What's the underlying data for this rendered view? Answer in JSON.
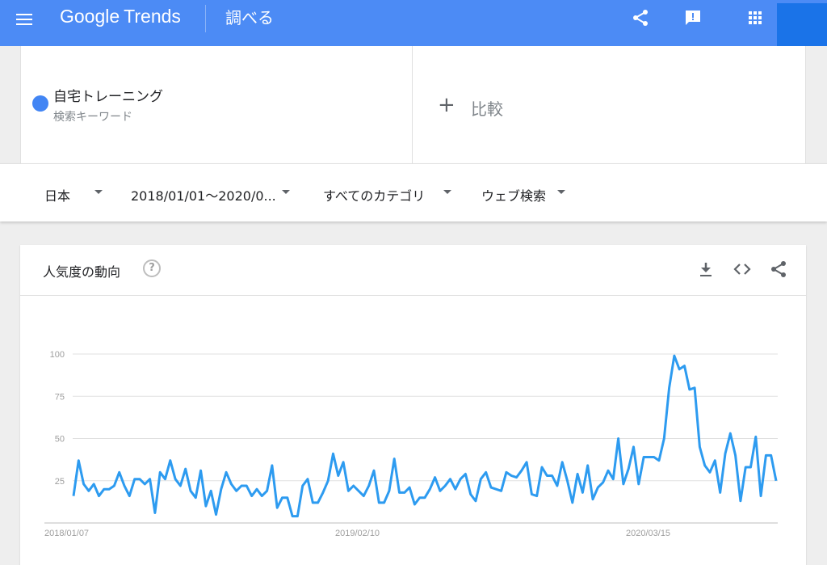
{
  "header": {
    "brand_google": "Google",
    "brand_trends": "Trends",
    "page_label": "調べる",
    "icons": [
      "menu-icon",
      "share-icon",
      "feedback-icon",
      "apps-icon"
    ]
  },
  "term": {
    "name": "自宅トレーニング",
    "type_label": "検索キーワード",
    "color": "#4285f4"
  },
  "compare": {
    "label": "比較"
  },
  "filters": {
    "region": "日本",
    "period": "2018/01/01～2020/0...",
    "category": "すべてのカテゴリ",
    "search_type": "ウェブ検索"
  },
  "chart_card": {
    "title": "人気度の動向",
    "help": "?",
    "icons": [
      "download-icon",
      "embed-icon",
      "share-icon"
    ]
  },
  "chart_data": {
    "type": "line",
    "title": "",
    "xlabel": "",
    "ylabel": "",
    "ylim": [
      0,
      100
    ],
    "yticks": [
      100,
      75,
      50,
      25
    ],
    "xtick_labels": [
      "2018/01/07",
      "2019/02/10",
      "2020/03/15"
    ],
    "grid": true,
    "legend": "none",
    "line_color": "#2d9bf0",
    "series": [
      {
        "values": [
          16,
          37,
          23,
          19,
          23,
          16,
          20,
          20,
          22,
          30,
          22,
          16,
          26,
          26,
          23,
          26,
          6,
          30,
          26,
          37,
          26,
          22,
          32,
          19,
          15,
          31,
          10,
          19,
          5,
          20,
          30,
          23,
          19,
          22,
          22,
          16,
          20,
          16,
          19,
          34,
          9,
          15,
          15,
          4,
          4,
          22,
          26,
          12,
          12,
          18,
          25,
          41,
          28,
          36,
          19,
          22,
          19,
          16,
          22,
          31,
          12,
          12,
          19,
          38,
          18,
          18,
          21,
          11,
          15,
          15,
          20,
          27,
          19,
          22,
          26,
          20,
          26,
          29,
          17,
          13,
          26,
          30,
          21,
          20,
          19,
          30,
          28,
          27,
          31,
          36,
          17,
          16,
          33,
          28,
          28,
          22,
          36,
          25,
          12,
          29,
          18,
          34,
          14,
          21,
          24,
          31,
          26,
          50,
          23,
          32,
          45,
          23,
          39,
          39,
          39,
          37,
          50,
          80,
          99,
          91,
          93,
          79,
          80,
          45,
          34,
          30,
          37,
          18,
          41,
          53,
          40,
          13,
          33,
          33,
          51,
          16,
          40,
          40,
          25
        ]
      }
    ]
  }
}
